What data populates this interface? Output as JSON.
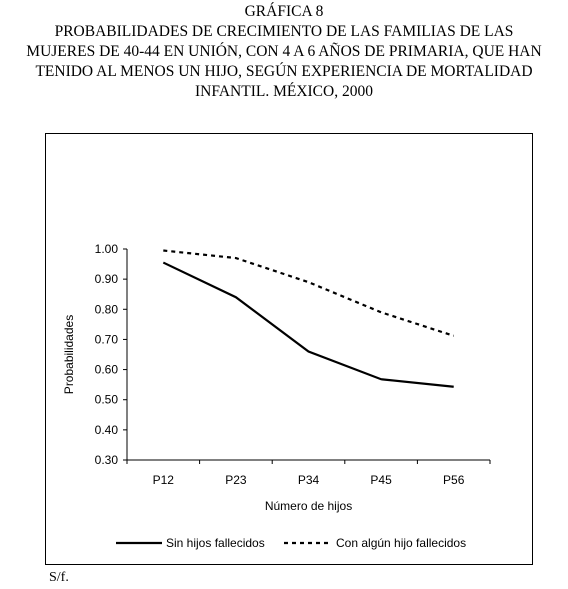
{
  "title_lines": [
    "GRÁFICA 8",
    "PROBABILIDADES DE CRECIMIENTO DE LAS FAMILIAS DE LAS",
    "MUJERES DE 40-44 EN UNIÓN, CON 4 A 6 AÑOS DE PRIMARIA, QUE HAN",
    "TENIDO AL MENOS UN HIJO, SEGÚN EXPERIENCIA DE MORTALIDAD",
    "INFANTIL. MÉXICO, 2000"
  ],
  "source_note": "S/f.",
  "chart_data": {
    "type": "line",
    "categories": [
      "P12",
      "P23",
      "P34",
      "P45",
      "P56"
    ],
    "series": [
      {
        "name": "Sin hijos fallecidos",
        "values": [
          0.955,
          0.84,
          0.66,
          0.568,
          0.543
        ],
        "style": "solid",
        "color": "#000000"
      },
      {
        "name": "Con algún hijo fallecidos",
        "values": [
          0.995,
          0.97,
          0.89,
          0.79,
          0.712
        ],
        "style": "dashed",
        "color": "#000000"
      }
    ],
    "xlabel": "Número de hijos",
    "ylabel": "Probabilidades",
    "ylim": [
      0.3,
      1.0
    ],
    "yticks": [
      "1.00",
      "0.90",
      "0.80",
      "0.70",
      "0.60",
      "0.50",
      "0.40",
      "0.30"
    ],
    "grid": false,
    "legend_position": "bottom"
  }
}
